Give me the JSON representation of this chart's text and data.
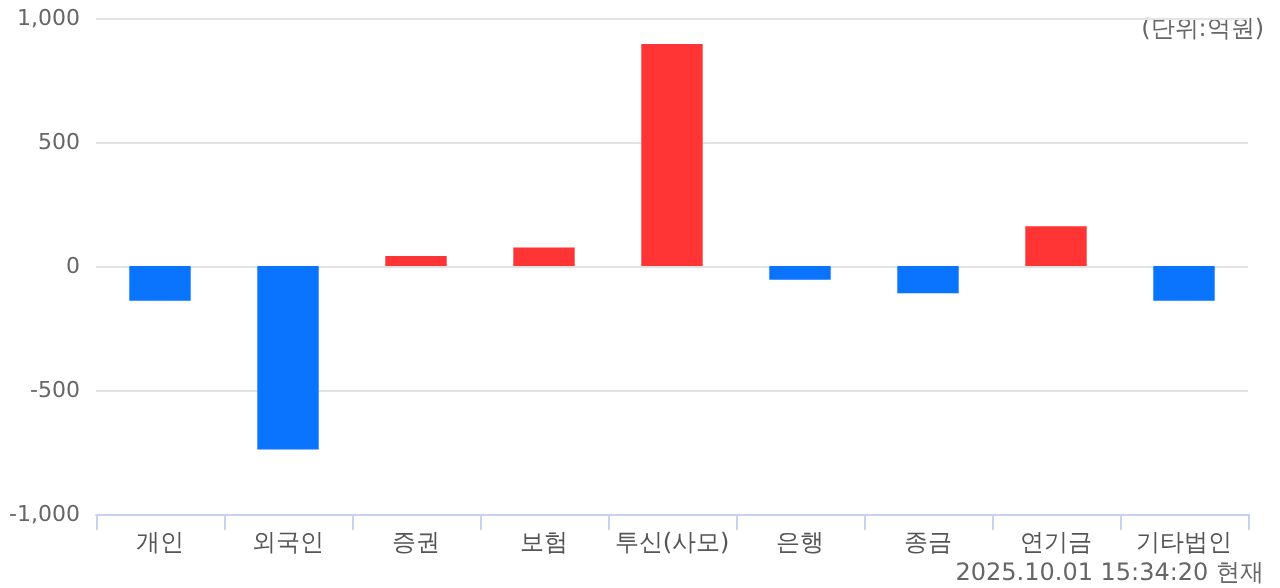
{
  "chart_data": {
    "type": "bar",
    "categories": [
      "개인",
      "외국인",
      "증권",
      "보험",
      "투신(사모)",
      "은행",
      "종금",
      "연기금",
      "기타법인"
    ],
    "values": [
      -140,
      -740,
      40,
      75,
      895,
      -55,
      -110,
      160,
      -140
    ],
    "colors": [
      "#0b74ff",
      "#0b74ff",
      "#ff3434",
      "#ff3434",
      "#ff3434",
      "#0b74ff",
      "#0b74ff",
      "#ff3434",
      "#0b74ff"
    ],
    "ylim": [
      -1000,
      1000
    ],
    "yticks": [
      {
        "value": -1000,
        "label": "-1,000"
      },
      -500,
      0,
      500,
      {
        "value": 1000,
        "label": "1,000"
      }
    ],
    "grid": "y",
    "annotations": [
      "(단위:억원)",
      "2025.10.01 15:34:20 현재"
    ]
  }
}
